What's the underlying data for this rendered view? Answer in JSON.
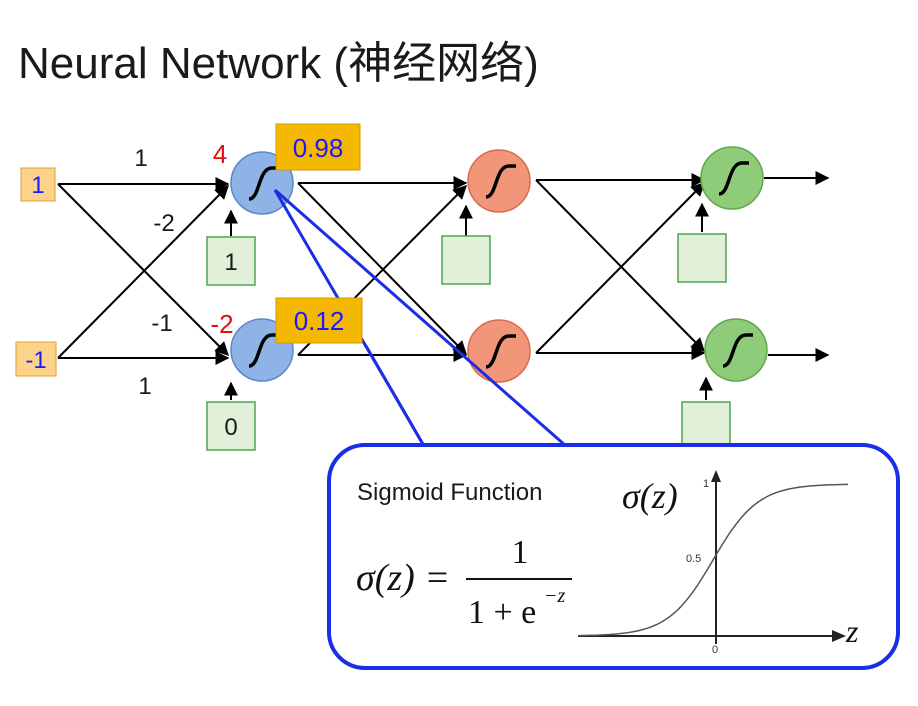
{
  "title": "Neural Network (神经网络)",
  "inputs": [
    {
      "value": "1"
    },
    {
      "value": "-1"
    }
  ],
  "hidden_layer_1": {
    "neuron_top": {
      "z": "4",
      "activation": "0.98",
      "bias": "1",
      "weights": [
        "1",
        "-2"
      ]
    },
    "neuron_bottom": {
      "z": "-2",
      "activation": "0.12",
      "bias": "0",
      "weights": [
        "-1",
        "1"
      ]
    }
  },
  "callout": {
    "heading": "Sigmoid Function",
    "formula": {
      "lhs": "σ(z) =",
      "numerator": "1",
      "denominator_base": "1 + e",
      "exponent": "−z"
    },
    "plot": {
      "y_label": "σ(z)",
      "x_label": "z",
      "y_ticks": [
        "1",
        "0.5"
      ],
      "x_ticks": [
        "0"
      ]
    }
  },
  "colors": {
    "input_box": "#fdd38c",
    "input_text": "#1a1aff",
    "z_text": "#e01010",
    "activation_box": "#f5b800",
    "activation_text": "#1a1aff",
    "neuron_layer1": "#8fb3e6",
    "neuron_layer2": "#f2967a",
    "neuron_layer3": "#8fcc7a",
    "bias_box": "#e2efd9",
    "bias_border": "#4da64d",
    "callout_border": "#1a2ee6"
  },
  "chart_data": {
    "type": "line",
    "series": [
      {
        "x": [
          -6,
          -4,
          -2,
          -1,
          0,
          1,
          2,
          4,
          6
        ],
        "y": [
          0.0025,
          0.018,
          0.119,
          0.269,
          0.5,
          0.731,
          0.881,
          0.982,
          0.9975
        ]
      }
    ],
    "xlabel": "z",
    "ylabel": "σ(z)",
    "ylim": [
      0,
      1
    ],
    "yticks": [
      0.5,
      1
    ],
    "xticks": [
      0
    ]
  }
}
